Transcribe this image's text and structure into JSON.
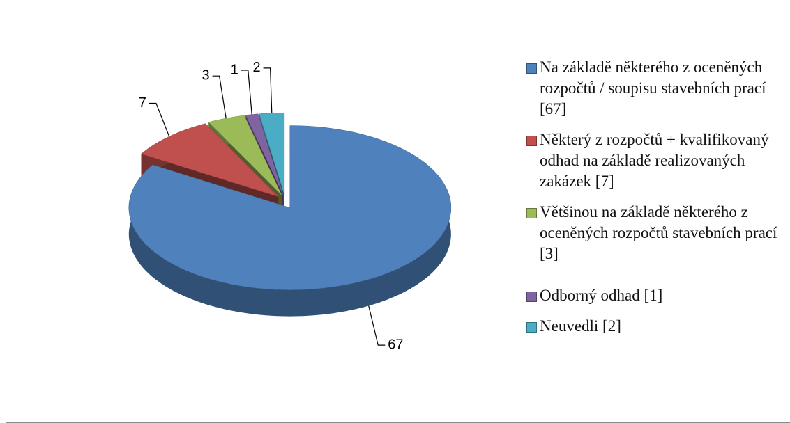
{
  "chart_data": {
    "type": "pie",
    "categories": [
      "Na základě některého z oceněných rozpočtů / soupisu stavebních prací [67]",
      "Některý z rozpočtů + kvalifikovaný odhad na základě realizovaných zakázek [7]",
      "Většinou na základě některého z oceněných rozpočtů stavebních prací [3]",
      "Odborný odhad [1]",
      "Neuvedli [2]"
    ],
    "values": [
      67,
      7,
      3,
      1,
      2
    ],
    "colors": [
      "#4f81bd",
      "#c0504d",
      "#9bbb59",
      "#8064a2",
      "#4bacc6"
    ],
    "legend": "right"
  }
}
